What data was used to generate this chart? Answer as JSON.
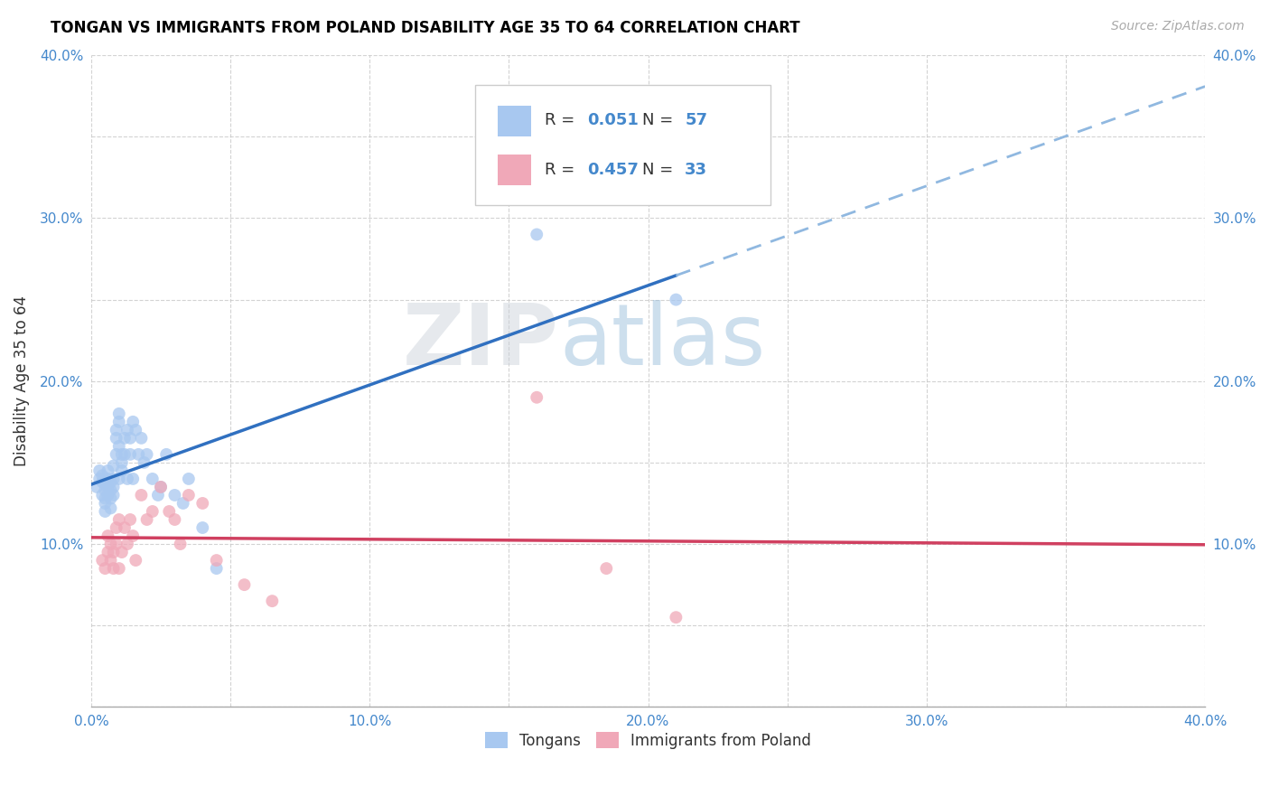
{
  "title": "TONGAN VS IMMIGRANTS FROM POLAND DISABILITY AGE 35 TO 64 CORRELATION CHART",
  "source": "Source: ZipAtlas.com",
  "ylabel": "Disability Age 35 to 64",
  "xlim": [
    0.0,
    0.4
  ],
  "ylim": [
    0.0,
    0.4
  ],
  "xticks": [
    0.0,
    0.05,
    0.1,
    0.15,
    0.2,
    0.25,
    0.3,
    0.35,
    0.4
  ],
  "yticks": [
    0.0,
    0.05,
    0.1,
    0.15,
    0.2,
    0.25,
    0.3,
    0.35,
    0.4
  ],
  "xticklabels": [
    "0.0%",
    "",
    "10.0%",
    "",
    "20.0%",
    "",
    "30.0%",
    "",
    "40.0%"
  ],
  "yticklabels": [
    "",
    "",
    "10.0%",
    "",
    "20.0%",
    "",
    "30.0%",
    "",
    "40.0%"
  ],
  "legend_R1": "0.051",
  "legend_N1": "57",
  "legend_R2": "0.457",
  "legend_N2": "33",
  "tongan_color": "#a8c8f0",
  "poland_color": "#f0a8b8",
  "trendline_tongan_color": "#3070c0",
  "trendline_poland_color": "#d04060",
  "trendline_tongan_dash_color": "#90b8e0",
  "watermark_color": "#c0d8f0",
  "grid_color": "#c8c8c8",
  "tongan_x": [
    0.002,
    0.003,
    0.003,
    0.004,
    0.004,
    0.004,
    0.005,
    0.005,
    0.005,
    0.005,
    0.005,
    0.006,
    0.006,
    0.006,
    0.006,
    0.007,
    0.007,
    0.007,
    0.007,
    0.008,
    0.008,
    0.008,
    0.008,
    0.009,
    0.009,
    0.009,
    0.01,
    0.01,
    0.01,
    0.01,
    0.011,
    0.011,
    0.011,
    0.012,
    0.012,
    0.013,
    0.013,
    0.014,
    0.014,
    0.015,
    0.015,
    0.016,
    0.017,
    0.018,
    0.019,
    0.02,
    0.022,
    0.024,
    0.025,
    0.027,
    0.03,
    0.033,
    0.035,
    0.04,
    0.045,
    0.16,
    0.21
  ],
  "tongan_y": [
    0.135,
    0.14,
    0.145,
    0.13,
    0.138,
    0.142,
    0.128,
    0.133,
    0.137,
    0.125,
    0.12,
    0.135,
    0.14,
    0.13,
    0.145,
    0.138,
    0.133,
    0.128,
    0.122,
    0.14,
    0.135,
    0.148,
    0.13,
    0.155,
    0.165,
    0.17,
    0.18,
    0.175,
    0.16,
    0.14,
    0.155,
    0.15,
    0.145,
    0.165,
    0.155,
    0.17,
    0.14,
    0.165,
    0.155,
    0.175,
    0.14,
    0.17,
    0.155,
    0.165,
    0.15,
    0.155,
    0.14,
    0.13,
    0.135,
    0.155,
    0.13,
    0.125,
    0.14,
    0.11,
    0.085,
    0.29,
    0.25
  ],
  "poland_x": [
    0.004,
    0.005,
    0.006,
    0.006,
    0.007,
    0.007,
    0.008,
    0.008,
    0.009,
    0.009,
    0.01,
    0.01,
    0.011,
    0.012,
    0.013,
    0.014,
    0.015,
    0.016,
    0.018,
    0.02,
    0.022,
    0.025,
    0.028,
    0.03,
    0.032,
    0.035,
    0.04,
    0.045,
    0.055,
    0.065,
    0.16,
    0.185,
    0.21
  ],
  "poland_y": [
    0.09,
    0.085,
    0.095,
    0.105,
    0.09,
    0.1,
    0.085,
    0.095,
    0.11,
    0.1,
    0.085,
    0.115,
    0.095,
    0.11,
    0.1,
    0.115,
    0.105,
    0.09,
    0.13,
    0.115,
    0.12,
    0.135,
    0.12,
    0.115,
    0.1,
    0.13,
    0.125,
    0.09,
    0.075,
    0.065,
    0.19,
    0.085,
    0.055
  ]
}
